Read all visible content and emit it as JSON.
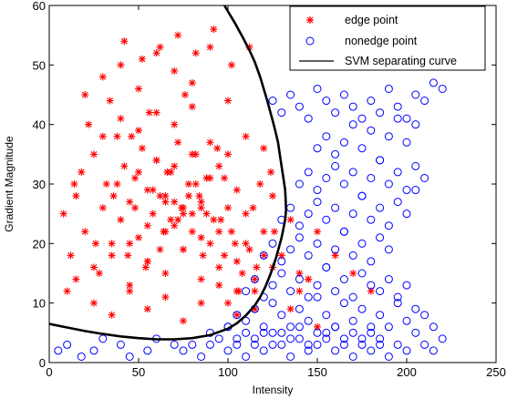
{
  "chart_data": {
    "type": "scatter",
    "xlabel": "Intensity",
    "ylabel": "Gradient  Magnitude",
    "xlim": [
      0,
      250
    ],
    "ylim": [
      0,
      60
    ],
    "xticks": [
      0,
      50,
      100,
      150,
      200,
      250
    ],
    "yticks": [
      0,
      10,
      20,
      30,
      40,
      50,
      60
    ],
    "grid": false,
    "legend_position": "top-right",
    "series": [
      {
        "name": "edge point",
        "marker": "asterisk",
        "color": "#ff0000",
        "x": [
          8,
          12,
          15,
          18,
          20,
          25,
          28,
          30,
          32,
          35,
          38,
          40,
          42,
          45,
          48,
          50,
          52,
          55,
          58,
          60,
          62,
          65,
          68,
          70,
          72,
          75,
          78,
          80,
          82,
          85,
          88,
          90,
          92,
          95,
          98,
          100,
          102,
          105,
          108,
          110,
          112,
          115,
          118,
          120,
          10,
          14,
          22,
          26,
          34,
          36,
          44,
          46,
          54,
          56,
          64,
          66,
          74,
          76,
          84,
          86,
          94,
          96,
          104,
          106,
          114,
          116,
          124,
          126,
          20,
          30,
          40,
          50,
          60,
          70,
          80,
          90,
          100,
          110,
          120,
          25,
          35,
          45,
          55,
          65,
          75,
          85,
          95,
          105,
          115,
          15,
          25,
          35,
          45,
          55,
          65,
          75,
          85,
          95,
          105,
          30,
          40,
          50,
          60,
          70,
          80,
          90,
          100,
          38,
          48,
          58,
          68,
          78,
          88,
          98,
          45,
          55,
          65,
          75,
          85,
          50,
          60,
          70,
          80,
          90,
          55,
          65,
          75,
          85,
          62,
          72,
          82,
          70,
          80,
          95,
          110,
          125,
          130,
          135,
          140,
          145,
          150,
          160,
          170,
          180,
          100,
          105,
          115,
          120,
          125,
          135,
          140,
          145,
          150,
          42,
          52,
          62,
          72,
          82,
          92,
          102,
          112
        ],
        "y": [
          25,
          18,
          28,
          32,
          22,
          35,
          15,
          26,
          30,
          20,
          38,
          24,
          33,
          27,
          31,
          21,
          36,
          29,
          25,
          34,
          19,
          28,
          32,
          23,
          37,
          26,
          30,
          22,
          35,
          27,
          31,
          20,
          24,
          33,
          18,
          26,
          22,
          29,
          15,
          25,
          19,
          14,
          30,
          22,
          12,
          30,
          40,
          20,
          44,
          28,
          18,
          38,
          16,
          42,
          22,
          32,
          26,
          45,
          28,
          18,
          36,
          24,
          20,
          12,
          26,
          16,
          32,
          22,
          45,
          48,
          50,
          46,
          52,
          49,
          47,
          53,
          44,
          38,
          36,
          10,
          8,
          12,
          9,
          11,
          7,
          10,
          13,
          8,
          9,
          14,
          16,
          18,
          13,
          17,
          15,
          19,
          14,
          16,
          12,
          38,
          41,
          39,
          42,
          40,
          43,
          37,
          35,
          30,
          26,
          29,
          24,
          28,
          25,
          31,
          20,
          17,
          22,
          19,
          21,
          32,
          34,
          33,
          35,
          31,
          23,
          27,
          25,
          26,
          28,
          24,
          30,
          27,
          25,
          22,
          20,
          28,
          18,
          24,
          15,
          14,
          22,
          18,
          15,
          12,
          10,
          17,
          12,
          18,
          16,
          9,
          12,
          14,
          6,
          54,
          51,
          53,
          55,
          52,
          56,
          50,
          53
        ]
      },
      {
        "name": "nonedge point",
        "marker": "circle",
        "color": "#0000ff",
        "x": [
          5,
          10,
          18,
          25,
          30,
          40,
          45,
          55,
          60,
          70,
          75,
          85,
          90,
          100,
          105,
          110,
          115,
          120,
          125,
          130,
          135,
          140,
          145,
          150,
          155,
          160,
          165,
          170,
          175,
          180,
          185,
          190,
          195,
          200,
          205,
          210,
          215,
          220,
          100,
          105,
          110,
          115,
          120,
          125,
          130,
          135,
          140,
          145,
          150,
          155,
          160,
          165,
          170,
          175,
          180,
          185,
          190,
          195,
          200,
          205,
          210,
          215,
          110,
          115,
          120,
          125,
          130,
          135,
          140,
          145,
          150,
          155,
          160,
          165,
          170,
          175,
          180,
          185,
          190,
          195,
          200,
          120,
          125,
          130,
          135,
          140,
          145,
          150,
          155,
          160,
          165,
          170,
          175,
          180,
          185,
          190,
          130,
          135,
          140,
          145,
          150,
          155,
          160,
          165,
          170,
          175,
          180,
          185,
          190,
          195,
          200,
          205,
          140,
          145,
          150,
          155,
          160,
          165,
          170,
          175,
          180,
          185,
          190,
          195,
          200,
          205,
          210,
          150,
          155,
          160,
          165,
          170,
          175,
          180,
          185,
          190,
          195,
          200,
          205,
          125,
          130,
          135,
          140,
          145,
          150,
          155,
          160,
          165,
          170,
          175,
          180,
          185,
          190,
          195,
          200,
          205,
          210,
          215,
          220,
          80,
          90,
          95,
          100,
          105,
          110,
          115,
          120,
          125,
          130,
          135,
          140,
          145,
          150,
          155,
          160,
          165,
          170,
          175,
          180,
          185
        ],
        "y": [
          2,
          3,
          1,
          2,
          4,
          3,
          1,
          2,
          4,
          3,
          2,
          1,
          3,
          2,
          4,
          1,
          3,
          2,
          5,
          3,
          1,
          4,
          2,
          3,
          5,
          2,
          4,
          1,
          3,
          2,
          4,
          1,
          3,
          2,
          5,
          3,
          2,
          4,
          6,
          8,
          7,
          9,
          5,
          10,
          8,
          6,
          9,
          7,
          11,
          8,
          6,
          10,
          7,
          9,
          5,
          8,
          6,
          10,
          7,
          9,
          8,
          6,
          12,
          14,
          11,
          13,
          15,
          12,
          14,
          11,
          13,
          16,
          12,
          14,
          11,
          15,
          13,
          12,
          14,
          11,
          13,
          18,
          20,
          17,
          19,
          21,
          18,
          20,
          16,
          19,
          22,
          18,
          20,
          17,
          21,
          19,
          24,
          26,
          23,
          25,
          27,
          24,
          26,
          22,
          25,
          28,
          24,
          26,
          23,
          27,
          25,
          29,
          30,
          32,
          29,
          31,
          33,
          30,
          32,
          28,
          31,
          34,
          30,
          32,
          29,
          33,
          31,
          36,
          38,
          35,
          37,
          40,
          36,
          39,
          34,
          38,
          41,
          37,
          40,
          44,
          42,
          45,
          43,
          41,
          46,
          44,
          42,
          45,
          43,
          41,
          44,
          42,
          46,
          43,
          41,
          45,
          44,
          47,
          46,
          3,
          5,
          4,
          6,
          3,
          5,
          4,
          6,
          3,
          5,
          4,
          6,
          3,
          5,
          4,
          6,
          3,
          5,
          4,
          6,
          3
        ]
      },
      {
        "name": "SVM separating curve",
        "marker": "none",
        "color": "#000000",
        "line": true,
        "x": [
          0,
          10,
          20,
          30,
          40,
          50,
          60,
          70,
          80,
          90,
          100,
          105,
          110,
          115,
          118,
          121,
          124,
          127,
          130,
          131,
          132,
          132.5,
          132.3,
          132,
          131,
          130,
          129,
          128,
          126,
          124,
          122,
          120,
          118,
          115,
          112,
          108,
          104,
          100,
          96,
          93
        ],
        "y": [
          6.5,
          5.9,
          5.3,
          4.8,
          4.4,
          4.1,
          3.9,
          3.9,
          4.1,
          4.6,
          5.7,
          6.6,
          7.9,
          9.6,
          11,
          12.8,
          15,
          17.7,
          21,
          22.5,
          24,
          25.6,
          27.3,
          29,
          31,
          33,
          35,
          37,
          39.5,
          41.8,
          44,
          46,
          48,
          50.5,
          52.5,
          54.8,
          57,
          59,
          61,
          62.5
        ]
      }
    ]
  }
}
